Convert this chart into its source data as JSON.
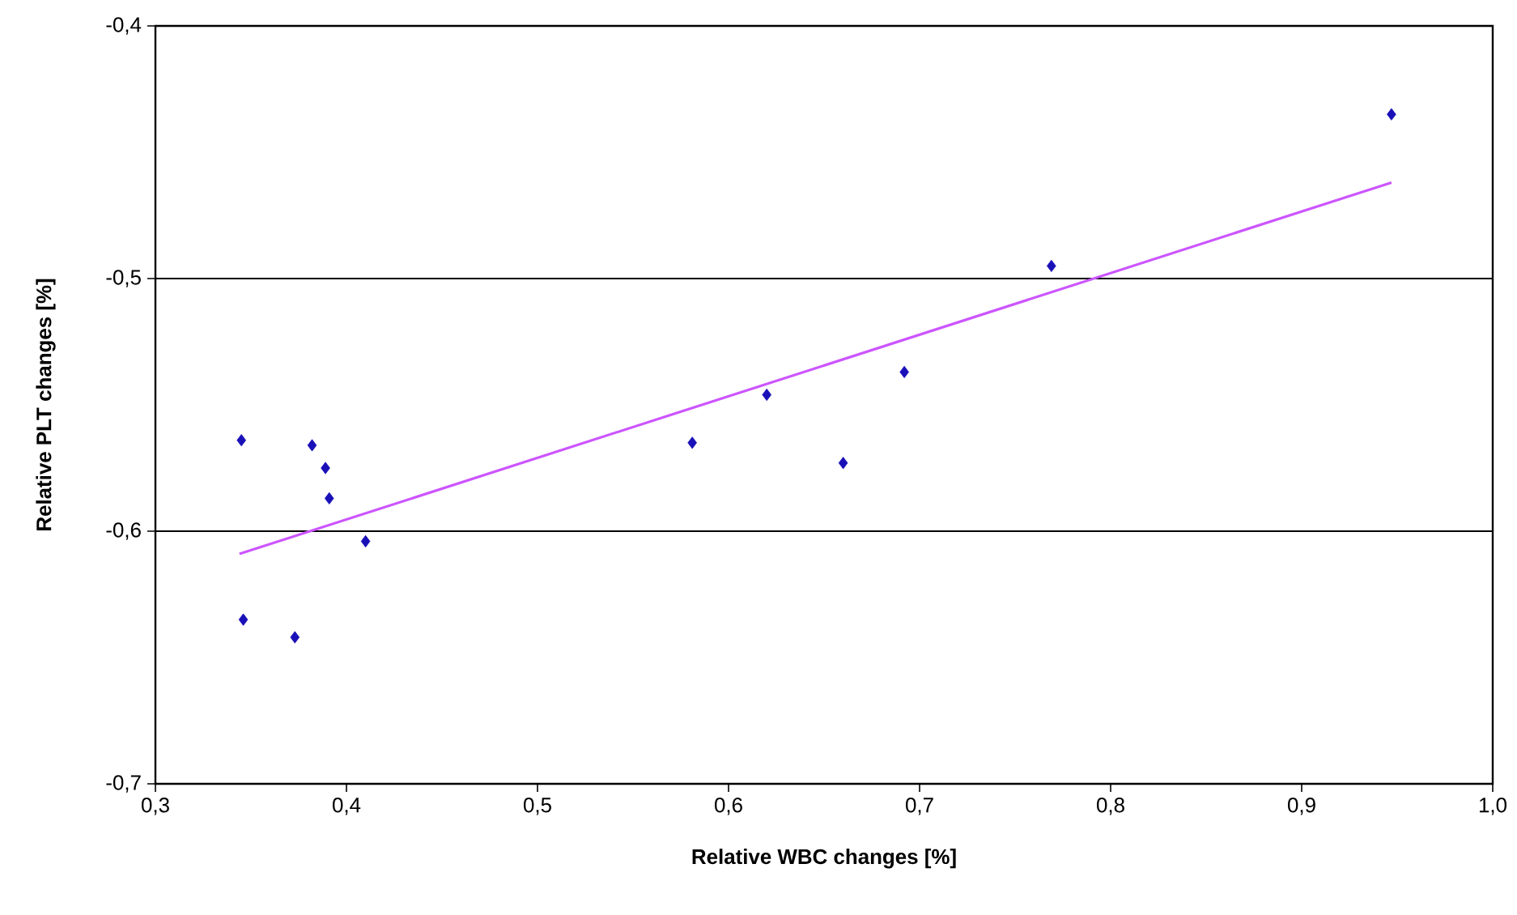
{
  "chart_data": {
    "type": "scatter",
    "xlabel": "Relative WBC changes [%]",
    "ylabel": "Relative PLT changes [%]",
    "xlim": [
      0.3,
      1.0
    ],
    "ylim": [
      -0.7,
      -0.4
    ],
    "xticks": [
      {
        "value": 0.3,
        "label": "0,3"
      },
      {
        "value": 0.4,
        "label": "0,4"
      },
      {
        "value": 0.5,
        "label": "0,5"
      },
      {
        "value": 0.6,
        "label": "0,6"
      },
      {
        "value": 0.7,
        "label": "0,7"
      },
      {
        "value": 0.8,
        "label": "0,8"
      },
      {
        "value": 0.9,
        "label": "0,9"
      },
      {
        "value": 1.0,
        "label": "1,0"
      }
    ],
    "yticks": [
      {
        "value": -0.7,
        "label": "-0,7"
      },
      {
        "value": -0.6,
        "label": "-0,6"
      },
      {
        "value": -0.5,
        "label": "-0,5"
      },
      {
        "value": -0.4,
        "label": "-0,4"
      }
    ],
    "grid": "y",
    "marker": "diamond",
    "series": [
      {
        "color": "#1a10b8",
        "x": [
          0.345,
          0.346,
          0.373,
          0.382,
          0.389,
          0.391,
          0.41,
          0.581,
          0.62,
          0.66,
          0.692,
          0.769,
          0.947
        ],
        "values": [
          -0.564,
          -0.635,
          -0.642,
          -0.566,
          -0.575,
          -0.587,
          -0.604,
          -0.565,
          -0.546,
          -0.573,
          -0.537,
          -0.495,
          -0.435
        ]
      },
      {
        "type": "line",
        "marker": "none",
        "color": "#cc55ff",
        "x": [
          0.344,
          0.947
        ],
        "values": [
          -0.609,
          -0.462
        ]
      }
    ]
  }
}
